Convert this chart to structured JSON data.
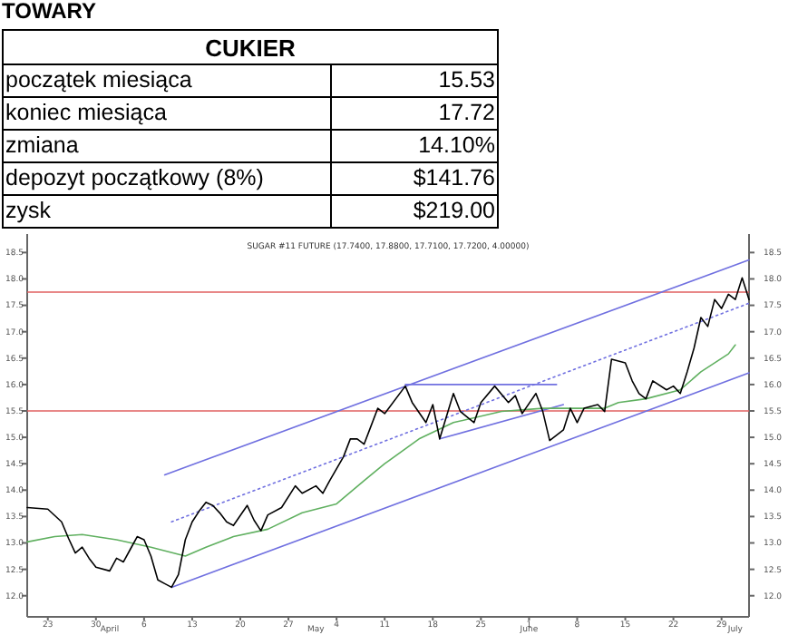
{
  "chart_data": [
    {
      "type": "other",
      "title": "TOWARY",
      "subtitle": "CUKIER",
      "categories": [
        "początek miesiąca",
        "koniec miesiąca",
        "zmiana",
        "depozyt początkowy (8%)",
        "zysk"
      ],
      "value_labels": [
        "15.53",
        "17.72",
        "14.10%",
        "$141.76",
        "$219.00"
      ]
    },
    {
      "type": "line",
      "title": "SUGAR #11 FUTURE (17.7400, 17.8800, 17.7100, 17.7200, 4.00000)",
      "xlim": [
        "--03-20",
        "--07-03"
      ],
      "xticks": [
        {
          "value": "--03-23",
          "label": "23"
        },
        {
          "value": "--03-30",
          "label": "30"
        },
        {
          "value": "--04-06",
          "label": "6"
        },
        {
          "value": "--04-13",
          "label": "13"
        },
        {
          "value": "--04-20",
          "label": "20"
        },
        {
          "value": "--04-27",
          "label": "27"
        },
        {
          "value": "--05-04",
          "label": "4"
        },
        {
          "value": "--05-11",
          "label": "11"
        },
        {
          "value": "--05-18",
          "label": "18"
        },
        {
          "value": "--05-25",
          "label": "25"
        },
        {
          "value": "--06-01",
          "label": "1"
        },
        {
          "value": "--06-08",
          "label": "8"
        },
        {
          "value": "--06-15",
          "label": "15"
        },
        {
          "value": "--06-22",
          "label": "22"
        },
        {
          "value": "--06-29",
          "label": "29"
        },
        {
          "value": "--04-01",
          "label": "April"
        },
        {
          "value": "--05-01",
          "label": "May"
        },
        {
          "value": "--06-01",
          "label": "June"
        },
        {
          "value": "--07-01",
          "label": "July"
        }
      ],
      "ylim": [
        11.6,
        18.85
      ],
      "yticks": [
        {
          "value": 12,
          "label": "12.0"
        },
        12.5,
        {
          "value": 13,
          "label": "13.0"
        },
        13.5,
        {
          "value": 14,
          "label": "14.0"
        },
        14.5,
        {
          "value": 15,
          "label": "15.0"
        },
        15.5,
        {
          "value": 16,
          "label": "16.0"
        },
        16.5,
        {
          "value": 17,
          "label": "17.0"
        },
        17.5,
        {
          "value": 18,
          "label": "18.0"
        },
        18.5
      ],
      "y2lim": [
        11.6,
        18.85
      ],
      "y2ticks": [
        {
          "value": 12,
          "label": "12.0"
        },
        12.5,
        {
          "value": 13,
          "label": "13.0"
        },
        13.5,
        {
          "value": 14,
          "label": "14.0"
        },
        14.5,
        {
          "value": 15,
          "label": "15.0"
        },
        15.5,
        {
          "value": 16,
          "label": "16.0"
        },
        16.5,
        {
          "value": 17,
          "label": "17.0"
        },
        17.5,
        {
          "value": 18,
          "label": "18.0"
        },
        18.5
      ],
      "grid": false,
      "ref_lines": [
        {
          "axis": "y",
          "value": 17.75,
          "color": "#e06060"
        },
        {
          "axis": "y",
          "value": 15.5,
          "color": "#e06060"
        }
      ],
      "series": [
        {
          "color": "#7070e0",
          "x": [
            "--04-09",
            "--07-03"
          ],
          "values": [
            14.29,
            18.36
          ]
        },
        {
          "color": "#7070e0",
          "x": [
            "--04-10",
            "--07-03"
          ],
          "values": [
            12.16,
            16.22
          ]
        },
        {
          "color": "#7070e0",
          "line_style": "dotted",
          "x": [
            "--04-10",
            "--07-03"
          ],
          "values": [
            13.4,
            17.54
          ]
        },
        {
          "color": "#7070e0",
          "x": [
            "--05-14",
            "--06-05"
          ],
          "values": [
            16.0,
            16.0
          ]
        },
        {
          "color": "#7070e0",
          "x": [
            "--05-19",
            "--06-06"
          ],
          "values": [
            14.97,
            15.62
          ]
        },
        {
          "color": "#60b060",
          "x": [
            "--03-20",
            "--03-24",
            "--03-28",
            "--04-02",
            "--04-07",
            "--04-12",
            "--04-15",
            "--04-19",
            "--04-24",
            "--04-29",
            "--05-04",
            "--05-08",
            "--05-11",
            "--05-16",
            "--05-21",
            "--05-28",
            "--06-03",
            "--06-12",
            "--06-14",
            "--06-18",
            "--06-23",
            "--06-26",
            "--06-30",
            "--07-01"
          ],
          "values": [
            13.02,
            13.12,
            13.16,
            13.06,
            12.92,
            12.75,
            12.92,
            13.12,
            13.26,
            13.57,
            13.74,
            14.18,
            14.5,
            14.97,
            15.28,
            15.49,
            15.55,
            15.55,
            15.66,
            15.73,
            15.9,
            16.24,
            16.58,
            16.75
          ]
        },
        {
          "color": "#000000",
          "x": [
            "--03-20",
            "--03-23",
            "--03-25",
            "--03-26",
            "--03-27",
            "--03-28",
            "--03-29",
            "--03-30",
            "--04-01",
            "--04-02",
            "--04-03",
            "--04-04",
            "--04-05",
            "--04-06",
            "--04-07",
            "--04-08",
            "--04-09",
            "--04-10",
            "--04-11",
            "--04-12",
            "--04-13",
            "--04-14",
            "--04-15",
            "--04-16",
            "--04-17",
            "--04-18",
            "--04-19",
            "--04-21",
            "--04-22",
            "--04-23",
            "--04-24",
            "--04-26",
            "--04-28",
            "--04-29",
            "--05-01",
            "--05-02",
            "--05-03",
            "--05-05",
            "--05-06",
            "--05-07",
            "--05-08",
            "--05-09",
            "--05-10",
            "--05-11",
            "--05-14",
            "--05-15",
            "--05-17",
            "--05-18",
            "--05-19",
            "--05-21",
            "--05-22",
            "--05-24",
            "--05-25",
            "--05-27",
            "--05-29",
            "--05-30",
            "--05-31",
            "--06-02",
            "--06-03",
            "--06-04",
            "--06-06",
            "--06-07",
            "--06-08",
            "--06-09",
            "--06-11",
            "--06-12",
            "--06-13",
            "--06-15",
            "--06-16",
            "--06-17",
            "--06-18",
            "--06-19",
            "--06-21",
            "--06-22",
            "--06-23",
            "--06-24",
            "--06-25",
            "--06-26",
            "--06-27",
            "--06-28",
            "--06-29",
            "--06-30",
            "--07-01",
            "--07-02",
            "--07-03"
          ],
          "values": [
            13.67,
            13.64,
            13.4,
            13.09,
            12.81,
            12.92,
            12.71,
            12.54,
            12.47,
            12.71,
            12.64,
            12.88,
            13.12,
            13.06,
            12.75,
            12.3,
            12.23,
            12.16,
            12.4,
            13.06,
            13.4,
            13.6,
            13.77,
            13.71,
            13.57,
            13.4,
            13.33,
            13.71,
            13.43,
            13.23,
            13.53,
            13.67,
            14.08,
            13.94,
            14.08,
            13.94,
            14.18,
            14.63,
            14.97,
            14.97,
            14.87,
            15.21,
            15.55,
            15.45,
            15.97,
            15.66,
            15.28,
            15.62,
            14.97,
            15.83,
            15.49,
            15.28,
            15.66,
            15.97,
            15.66,
            15.79,
            15.45,
            15.83,
            15.49,
            14.94,
            15.14,
            15.55,
            15.28,
            15.55,
            15.62,
            15.49,
            16.48,
            16.41,
            16.07,
            15.83,
            15.73,
            16.07,
            15.9,
            15.97,
            15.83,
            16.24,
            16.69,
            17.27,
            17.1,
            17.61,
            17.44,
            17.71,
            17.61,
            18.02,
            17.61
          ]
        }
      ]
    }
  ]
}
